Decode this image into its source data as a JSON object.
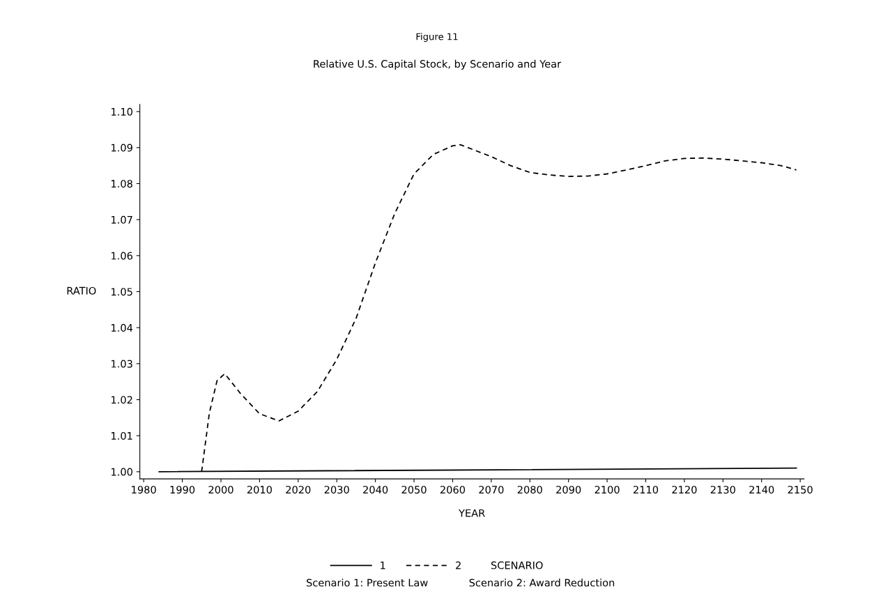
{
  "chart_data": {
    "type": "line",
    "title": "Figure 11",
    "subtitle": "Relative U.S. Capital Stock, by Scenario and Year",
    "xlabel": "YEAR",
    "ylabel": "RATIO",
    "legend_title": "SCENARIO",
    "legend": "bottom",
    "grid": false,
    "marker": "none",
    "xlim": [
      1979,
      2151
    ],
    "xticks": [
      1980,
      1990,
      2000,
      2010,
      2020,
      2030,
      2040,
      2050,
      2060,
      2070,
      2080,
      2090,
      2100,
      2110,
      2120,
      2130,
      2140,
      2150
    ],
    "ylim": [
      0.998,
      1.102
    ],
    "yticks": [
      {
        "value": 1.0,
        "label": "1.00"
      },
      1.01,
      1.02,
      1.03,
      1.04,
      1.05,
      1.06,
      1.07,
      1.08,
      1.09,
      {
        "value": 1.1,
        "label": "1.10"
      }
    ],
    "series": [
      {
        "name": "1",
        "color": "#000000",
        "line_style": "solid",
        "x": [
          1984,
          2149
        ],
        "values": [
          1.0,
          1.001
        ]
      },
      {
        "name": "2",
        "color": "#000000",
        "line_style": "dashed",
        "x": [
          1995,
          1997,
          1999,
          2001,
          2005,
          2010,
          2015,
          2020,
          2025,
          2030,
          2035,
          2040,
          2045,
          2050,
          2055,
          2060,
          2062,
          2070,
          2075,
          2080,
          2085,
          2090,
          2095,
          2100,
          2105,
          2110,
          2115,
          2120,
          2125,
          2130,
          2135,
          2140,
          2145,
          2149
        ],
        "values": [
          1.0,
          1.0163,
          1.0253,
          1.0272,
          1.0218,
          1.0161,
          1.0141,
          1.0168,
          1.0223,
          1.0312,
          1.0426,
          1.058,
          1.0717,
          1.0827,
          1.0881,
          1.0905,
          1.0908,
          1.0875,
          1.085,
          1.0831,
          1.0824,
          1.082,
          1.0821,
          1.0827,
          1.0838,
          1.085,
          1.0863,
          1.087,
          1.0871,
          1.0868,
          1.0863,
          1.0858,
          1.085,
          1.0838
        ]
      }
    ],
    "annotations": [
      "Scenario 1: Present Law",
      "Scenario 2: Award Reduction"
    ]
  }
}
